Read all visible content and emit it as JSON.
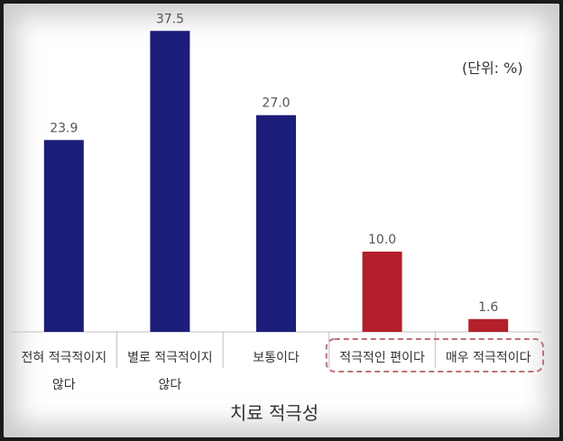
{
  "chart_data": {
    "type": "bar",
    "categories": [
      "전혀 적극적이지 않다",
      "별로 적극적이지 않다",
      "보통이다",
      "적극적인 편이다",
      "매우 적극적이다"
    ],
    "category_lines": [
      [
        "전혀 적극적이지",
        "않다"
      ],
      [
        "별로 적극적이지",
        "않다"
      ],
      [
        "보통이다"
      ],
      [
        "적극적인 편이다"
      ],
      [
        "매우 적극적이다"
      ]
    ],
    "values": [
      23.9,
      37.5,
      27.0,
      10.0,
      1.6
    ],
    "value_labels": [
      "23.9",
      "37.5",
      "27.0",
      "10.0",
      "1.6"
    ],
    "bar_colors": [
      "#1c1c7a",
      "#1c1c7a",
      "#1c1c7a",
      "#b3202c",
      "#b3202c"
    ],
    "highlighted": [
      false,
      false,
      false,
      true,
      true
    ],
    "title": "",
    "xlabel": "치료 적극성",
    "ylabel": "",
    "unit_label": "(단위: %)",
    "ylim": [
      0,
      40
    ],
    "grid": false,
    "legend": "none"
  },
  "colors": {
    "highlight_box": "#c07078",
    "axis": "#bfbfbf",
    "value_text": "#555555"
  }
}
